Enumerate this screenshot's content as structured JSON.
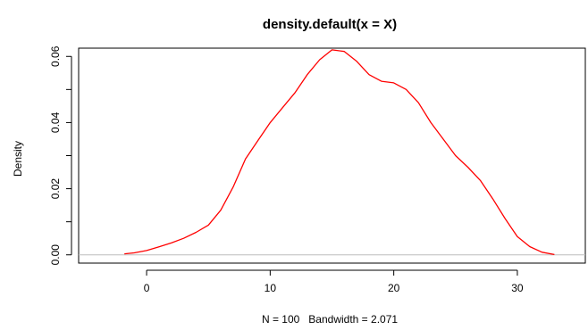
{
  "chart_data": {
    "type": "line",
    "title": "density.default(x = X)",
    "xlabel": "N = 100   Bandwidth = 2.071",
    "ylabel": "Density",
    "xlim": [
      -5.5,
      35.5
    ],
    "ylim": [
      -0.0025,
      0.0625
    ],
    "x_ticks": [
      0,
      10,
      20,
      30
    ],
    "x_tick_labels": [
      "0",
      "10",
      "20",
      "30"
    ],
    "y_ticks": [
      0.0,
      0.02,
      0.04,
      0.06
    ],
    "y_tick_labels": [
      "0.00",
      "0.02",
      "0.04",
      "0.06"
    ],
    "y_minor_ticks": [
      0.01,
      0.03,
      0.05
    ],
    "grid": false,
    "baseline": 0,
    "series": [
      {
        "color": "#ff0000",
        "x": [
          -1.8,
          -1.0,
          0.0,
          1.0,
          2.0,
          3.0,
          4.0,
          5.0,
          6.0,
          7.0,
          8.0,
          9.0,
          10.0,
          11.0,
          12.0,
          13.0,
          14.0,
          15.0,
          16.0,
          17.0,
          18.0,
          19.0,
          20.0,
          21.0,
          22.0,
          23.0,
          24.0,
          25.0,
          26.0,
          27.0,
          28.0,
          29.0,
          30.0,
          31.0,
          32.0,
          33.0
        ],
        "y": [
          0.0003,
          0.0006,
          0.0013,
          0.0024,
          0.0036,
          0.005,
          0.0068,
          0.009,
          0.0135,
          0.0205,
          0.029,
          0.0345,
          0.04,
          0.0445,
          0.049,
          0.0545,
          0.059,
          0.062,
          0.0615,
          0.0585,
          0.0545,
          0.0525,
          0.052,
          0.05,
          0.046,
          0.04,
          0.035,
          0.03,
          0.0265,
          0.0225,
          0.017,
          0.011,
          0.0055,
          0.0025,
          0.0008,
          0.0001
        ]
      }
    ]
  }
}
